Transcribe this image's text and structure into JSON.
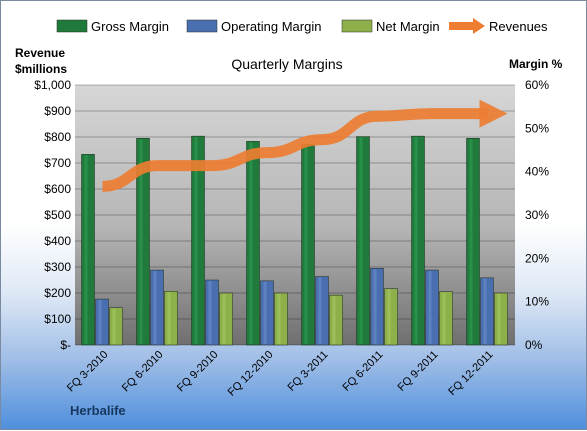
{
  "chart_data": {
    "type": "bar",
    "title": "Quarterly Margins",
    "categories": [
      "FQ 3-2010",
      "FQ 6-2010",
      "FQ 9-2010",
      "FQ 12-2010",
      "FQ 3-2011",
      "FQ 6-2011",
      "FQ 9-2011",
      "FQ 12-2011"
    ],
    "series": [
      {
        "name": "Gross Margin",
        "axis": "right",
        "unit": "%",
        "color": "#1f7a3c",
        "values": [
          44,
          47.7,
          48.2,
          47,
          46.3,
          48.1,
          48.2,
          47.7
        ]
      },
      {
        "name": "Operating Margin",
        "axis": "right",
        "unit": "%",
        "color": "#4a6fb0",
        "values": [
          10.6,
          17.3,
          15,
          14.8,
          15.8,
          17.7,
          17.3,
          15.5
        ]
      },
      {
        "name": "Net Margin",
        "axis": "right",
        "unit": "%",
        "color": "#8db04a",
        "values": [
          8.6,
          12.4,
          12,
          12,
          11.5,
          13,
          12.3,
          12
        ]
      },
      {
        "name": "Revenues",
        "axis": "left",
        "type": "line",
        "color": "#ed7d31",
        "values": [
          610,
          690,
          690,
          740,
          790,
          880,
          890,
          890
        ]
      }
    ],
    "ylabel_left": "Revenue $millions",
    "ylabel_right": "Margin %",
    "ylim_left": [
      0,
      1000
    ],
    "ylim_right": [
      0,
      60
    ],
    "yticks_left": [
      "$-",
      "$100",
      "$200",
      "$300",
      "$400",
      "$500",
      "$600",
      "$700",
      "$800",
      "$900",
      "$1,000"
    ],
    "yticks_right": [
      "0%",
      "10%",
      "20%",
      "30%",
      "40%",
      "50%",
      "60%"
    ],
    "legend_position": "top",
    "grid": true,
    "footer": "Herbalife"
  }
}
